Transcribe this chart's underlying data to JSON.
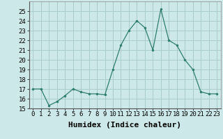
{
  "x": [
    0,
    1,
    2,
    3,
    4,
    5,
    6,
    7,
    8,
    9,
    10,
    11,
    12,
    13,
    14,
    15,
    16,
    17,
    18,
    19,
    20,
    21,
    22,
    23
  ],
  "y": [
    17.0,
    17.0,
    15.3,
    15.7,
    16.3,
    17.0,
    16.7,
    16.5,
    16.5,
    16.4,
    19.0,
    21.5,
    23.0,
    24.0,
    23.3,
    21.0,
    25.2,
    22.0,
    21.5,
    20.0,
    19.0,
    16.7,
    16.5,
    16.5
  ],
  "xlim": [
    -0.5,
    23.5
  ],
  "ylim": [
    15,
    26
  ],
  "yticks": [
    15,
    16,
    17,
    18,
    19,
    20,
    21,
    22,
    23,
    24,
    25
  ],
  "xticks": [
    0,
    1,
    2,
    3,
    4,
    5,
    6,
    7,
    8,
    9,
    10,
    11,
    12,
    13,
    14,
    15,
    16,
    17,
    18,
    19,
    20,
    21,
    22,
    23
  ],
  "xlabel": "Humidex (Indice chaleur)",
  "line_color": "#2e7d6e",
  "marker_color": "#2e7d6e",
  "bg_color": "#cce8e8",
  "grid_color": "#aacccc",
  "tick_fontsize": 6.5,
  "xlabel_fontsize": 8,
  "title": ""
}
